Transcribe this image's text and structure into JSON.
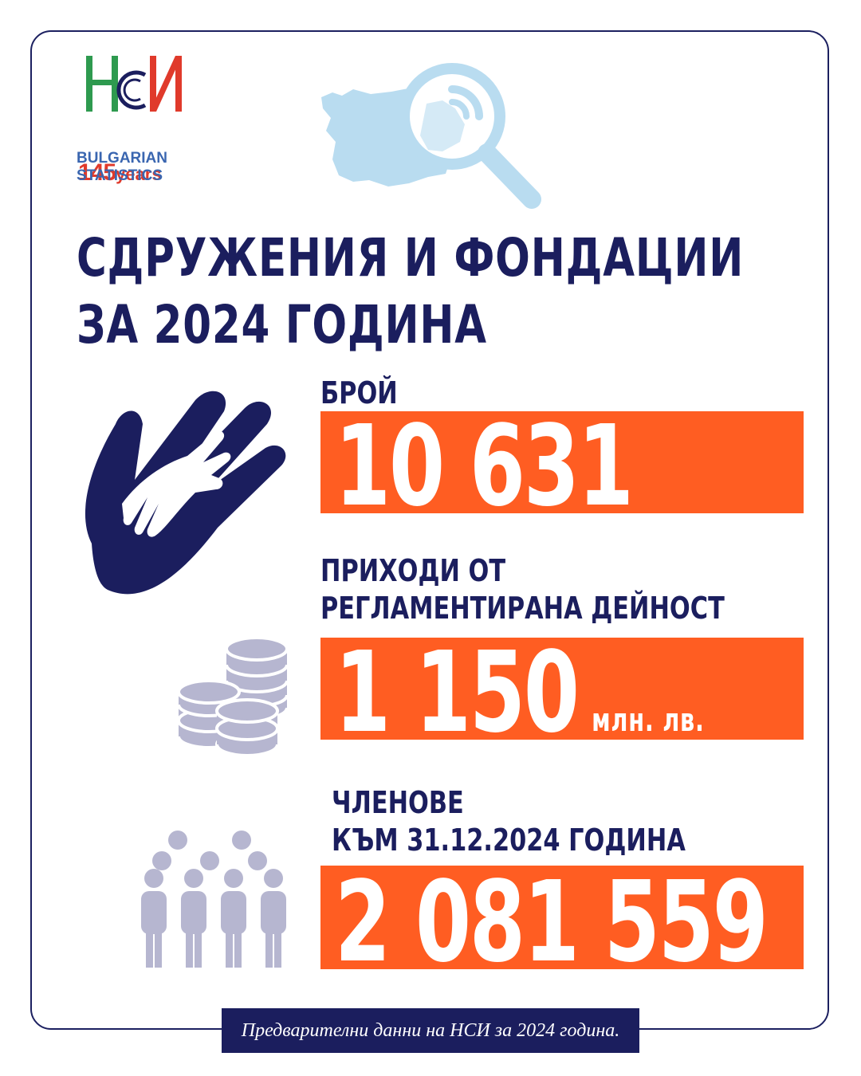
{
  "logo": {
    "years_number": "145",
    "years_word": "years",
    "line1": "BULGARIAN",
    "line2": "STATISTICS",
    "colors": {
      "green": "#2e9a4f",
      "red": "#e03a2b",
      "blue": "#3a66b0"
    }
  },
  "title": {
    "line1": "СДРУЖЕНИЯ И ФОНДАЦИИ",
    "line2": "ЗА 2024 ГОДИНА"
  },
  "stats": [
    {
      "label_lines": [
        "БРОЙ"
      ],
      "value": "10 631",
      "unit": "",
      "icon": "helping-hands-icon"
    },
    {
      "label_lines": [
        "ПРИХОДИ ОТ",
        "РЕГЛАМЕНТИРАНА ДЕЙНОСТ"
      ],
      "value": "1 150",
      "unit": "млн. лв.",
      "icon": "coins-icon"
    },
    {
      "label_lines": [
        "ЧЛЕНОВЕ",
        "КЪМ 31.12.2024 ГОДИНА"
      ],
      "value": "2 081 559",
      "unit": "",
      "icon": "people-icon"
    }
  ],
  "footer": "Предварителни данни на НСИ за 2024 година.",
  "colors": {
    "navy": "#1b1e5e",
    "orange": "#ff5d22",
    "light_blue": "#b9dcf0",
    "lavender": "#b6b6d0"
  }
}
